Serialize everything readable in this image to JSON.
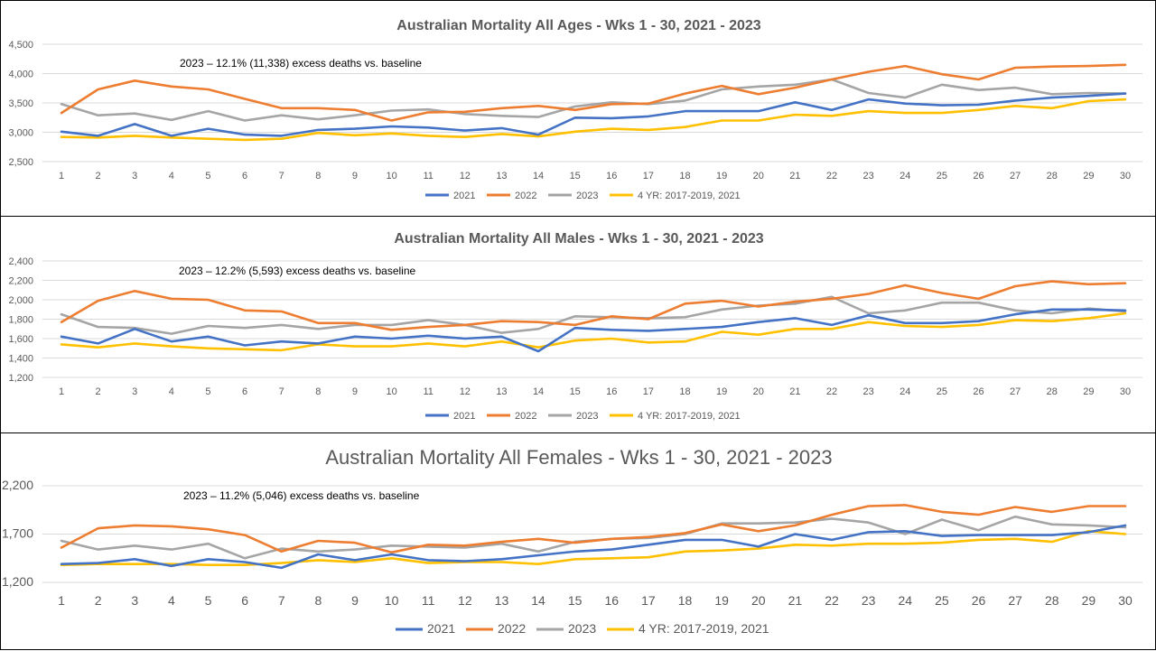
{
  "chart_data": [
    {
      "type": "line",
      "title": "Australian Mortality All Ages - Wks 1 - 30, 2021 - 2023",
      "annotation": "2023 – 12.1% (11,338)  excess deaths vs. baseline",
      "ylim": [
        2500,
        4500
      ],
      "yticks": [
        "2,500",
        "3,000",
        "3,500",
        "4,000",
        "4,500"
      ],
      "ytick_values": [
        2500,
        3000,
        3500,
        4000,
        4500
      ],
      "grid": true,
      "legend_position": "bottom",
      "categories": [
        1,
        2,
        3,
        4,
        5,
        6,
        7,
        8,
        9,
        10,
        11,
        12,
        13,
        14,
        15,
        16,
        17,
        18,
        19,
        20,
        21,
        22,
        23,
        24,
        25,
        26,
        27,
        28,
        29,
        30
      ],
      "series": [
        {
          "name": "2021",
          "color": "#4472C4",
          "values": [
            3010,
            2940,
            3140,
            2940,
            3060,
            2960,
            2940,
            3040,
            3060,
            3100,
            3080,
            3030,
            3070,
            2960,
            3250,
            3240,
            3270,
            3360,
            3360,
            3360,
            3510,
            3380,
            3560,
            3490,
            3460,
            3470,
            3540,
            3590,
            3620,
            3660
          ]
        },
        {
          "name": "2022",
          "color": "#ED7D31",
          "values": [
            3330,
            3730,
            3880,
            3780,
            3730,
            3570,
            3410,
            3410,
            3380,
            3200,
            3340,
            3350,
            3410,
            3450,
            3380,
            3480,
            3490,
            3660,
            3790,
            3650,
            3760,
            3900,
            4030,
            4130,
            3990,
            3900,
            4100,
            4120,
            4130,
            4150
          ]
        },
        {
          "name": "2023",
          "color": "#A5A5A5",
          "values": [
            3480,
            3290,
            3320,
            3210,
            3360,
            3200,
            3290,
            3220,
            3290,
            3370,
            3390,
            3310,
            3280,
            3260,
            3440,
            3510,
            3480,
            3540,
            3730,
            3780,
            3810,
            3900,
            3670,
            3590,
            3810,
            3720,
            3760,
            3650,
            3670,
            3660
          ]
        },
        {
          "name": "4 YR: 2017-2019, 2021",
          "color": "#FFC000",
          "values": [
            2920,
            2910,
            2940,
            2910,
            2890,
            2870,
            2890,
            2990,
            2950,
            2980,
            2940,
            2920,
            2970,
            2930,
            3010,
            3060,
            3040,
            3090,
            3200,
            3200,
            3300,
            3280,
            3360,
            3330,
            3330,
            3380,
            3450,
            3410,
            3530,
            3560
          ]
        }
      ]
    },
    {
      "type": "line",
      "title": "Australian Mortality All Males - Wks 1 - 30, 2021 - 2023",
      "annotation": "2023 – 12.2% (5,593)  excess deaths vs. baseline",
      "ylim": [
        1200,
        2400
      ],
      "yticks": [
        "1,200",
        "1,400",
        "1,600",
        "1,800",
        "2,000",
        "2,200",
        "2,400"
      ],
      "ytick_values": [
        1200,
        1400,
        1600,
        1800,
        2000,
        2200,
        2400
      ],
      "grid": true,
      "legend_position": "bottom",
      "categories": [
        1,
        2,
        3,
        4,
        5,
        6,
        7,
        8,
        9,
        10,
        11,
        12,
        13,
        14,
        15,
        16,
        17,
        18,
        19,
        20,
        21,
        22,
        23,
        24,
        25,
        26,
        27,
        28,
        29,
        30
      ],
      "series": [
        {
          "name": "2021",
          "color": "#4472C4",
          "values": [
            1620,
            1550,
            1700,
            1570,
            1620,
            1530,
            1570,
            1550,
            1620,
            1600,
            1630,
            1600,
            1620,
            1470,
            1710,
            1690,
            1680,
            1700,
            1720,
            1770,
            1810,
            1740,
            1840,
            1760,
            1760,
            1780,
            1850,
            1900,
            1900,
            1890
          ]
        },
        {
          "name": "2022",
          "color": "#ED7D31",
          "values": [
            1770,
            1990,
            2090,
            2010,
            2000,
            1890,
            1880,
            1760,
            1760,
            1690,
            1720,
            1740,
            1780,
            1770,
            1740,
            1830,
            1800,
            1960,
            1990,
            1930,
            1980,
            2010,
            2060,
            2150,
            2070,
            2010,
            2140,
            2190,
            2160,
            2170
          ]
        },
        {
          "name": "2023",
          "color": "#A5A5A5",
          "values": [
            1850,
            1720,
            1710,
            1650,
            1730,
            1710,
            1740,
            1700,
            1740,
            1740,
            1790,
            1740,
            1660,
            1700,
            1830,
            1820,
            1810,
            1820,
            1900,
            1940,
            1960,
            2030,
            1860,
            1890,
            1970,
            1970,
            1890,
            1860,
            1910,
            1880
          ]
        },
        {
          "name": "4 YR: 2017-2019, 2021",
          "color": "#FFC000",
          "values": [
            1540,
            1510,
            1550,
            1520,
            1500,
            1490,
            1480,
            1540,
            1520,
            1520,
            1550,
            1520,
            1570,
            1510,
            1580,
            1600,
            1560,
            1570,
            1670,
            1640,
            1700,
            1700,
            1770,
            1730,
            1720,
            1740,
            1790,
            1780,
            1810,
            1860
          ]
        }
      ]
    },
    {
      "type": "line",
      "title": "Australian Mortality All Females - Wks 1 - 30, 2021 - 2023",
      "annotation": "2023 – 11.2%  (5,046)   excess deaths vs. baseline",
      "ylim": [
        1200,
        2200
      ],
      "yticks": [
        "1,200",
        "1,700",
        "2,200"
      ],
      "ytick_values": [
        1200,
        1700,
        2200
      ],
      "grid": true,
      "legend_position": "bottom",
      "categories": [
        1,
        2,
        3,
        4,
        5,
        6,
        7,
        8,
        9,
        10,
        11,
        12,
        13,
        14,
        15,
        16,
        17,
        18,
        19,
        20,
        21,
        22,
        23,
        24,
        25,
        26,
        27,
        28,
        29,
        30
      ],
      "series": [
        {
          "name": "2021",
          "color": "#4472C4",
          "values": [
            1390,
            1400,
            1440,
            1370,
            1440,
            1410,
            1350,
            1490,
            1430,
            1490,
            1430,
            1420,
            1440,
            1480,
            1520,
            1540,
            1590,
            1640,
            1640,
            1570,
            1700,
            1640,
            1720,
            1730,
            1680,
            1690,
            1690,
            1690,
            1720,
            1790
          ]
        },
        {
          "name": "2022",
          "color": "#ED7D31",
          "values": [
            1560,
            1760,
            1790,
            1780,
            1750,
            1690,
            1520,
            1630,
            1610,
            1510,
            1590,
            1580,
            1620,
            1650,
            1610,
            1650,
            1670,
            1710,
            1800,
            1730,
            1790,
            1900,
            1990,
            2000,
            1930,
            1900,
            1980,
            1930,
            1990,
            1990
          ]
        },
        {
          "name": "2023",
          "color": "#A5A5A5",
          "values": [
            1630,
            1540,
            1580,
            1540,
            1600,
            1450,
            1550,
            1520,
            1540,
            1580,
            1570,
            1560,
            1600,
            1520,
            1620,
            1650,
            1660,
            1700,
            1810,
            1810,
            1820,
            1860,
            1820,
            1700,
            1850,
            1740,
            1880,
            1800,
            1790,
            1770
          ]
        },
        {
          "name": "4 YR: 2017-2019, 2021",
          "color": "#FFC000",
          "values": [
            1380,
            1390,
            1390,
            1390,
            1380,
            1380,
            1400,
            1430,
            1410,
            1450,
            1400,
            1410,
            1410,
            1390,
            1440,
            1450,
            1460,
            1520,
            1530,
            1550,
            1590,
            1580,
            1600,
            1600,
            1610,
            1640,
            1650,
            1620,
            1730,
            1700
          ]
        }
      ]
    }
  ]
}
